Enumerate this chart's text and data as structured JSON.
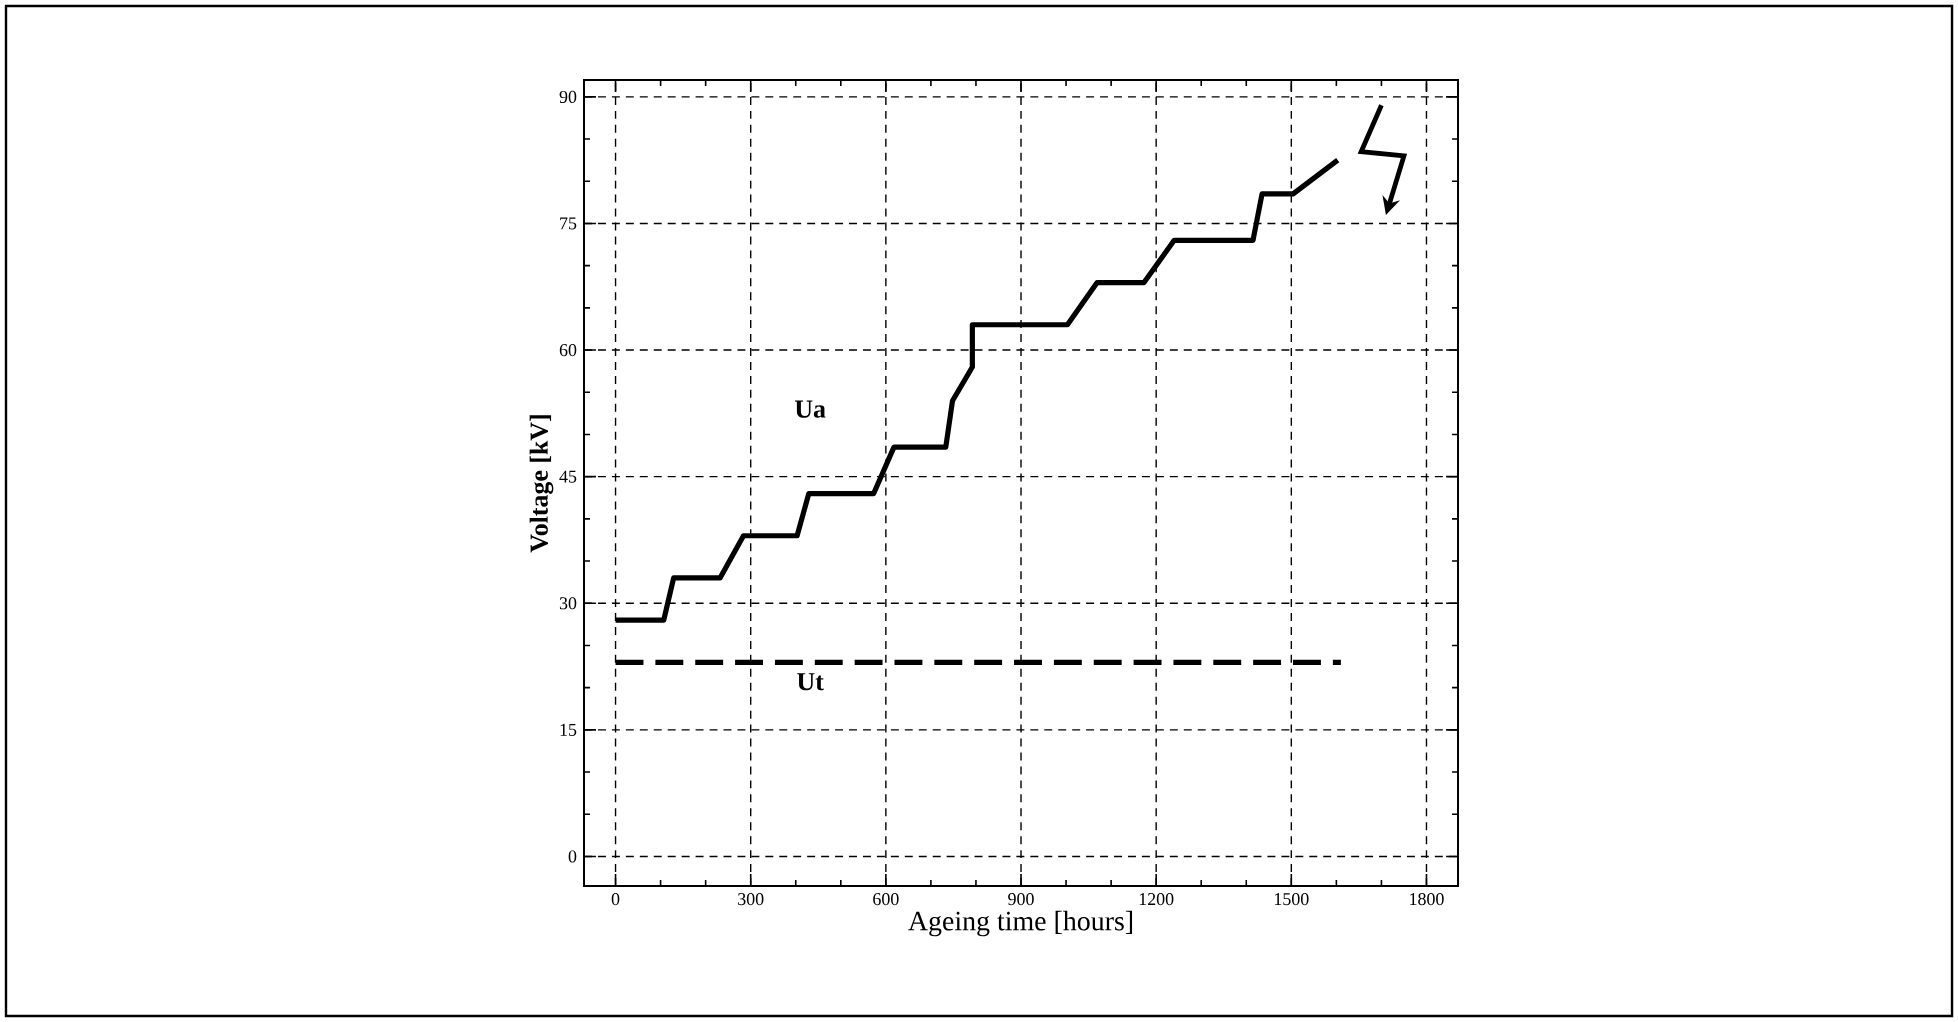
{
  "chart_data": {
    "type": "line",
    "xlabel": "Ageing time [hours]",
    "ylabel": "Voltage [kV]",
    "xlim": [
      -70,
      1870
    ],
    "ylim": [
      -3.5,
      92
    ],
    "xticks": [
      0,
      300,
      600,
      900,
      1200,
      1500,
      1800
    ],
    "yticks": [
      0,
      15,
      30,
      45,
      60,
      75,
      90
    ],
    "grid": true,
    "marker": "none",
    "series": [
      {
        "name": "Ua",
        "color": "#000000",
        "line_style": "solid",
        "x": [
          0,
          107,
          129,
          232,
          284,
          403,
          429,
          573,
          618,
          733,
          748,
          792,
          792,
          1003,
          1069,
          1173,
          1240,
          1415,
          1435,
          1504,
          1603
        ],
        "values": [
          28,
          28,
          33,
          33,
          38,
          38,
          43,
          43,
          48.5,
          48.5,
          54,
          58,
          63,
          63,
          68,
          68,
          73,
          73,
          78.5,
          78.5,
          82.5
        ]
      },
      {
        "name": "Ut",
        "color": "#000000",
        "line_style": "dashed",
        "x": [
          0,
          1610
        ],
        "values": [
          23,
          23
        ]
      }
    ]
  }
}
